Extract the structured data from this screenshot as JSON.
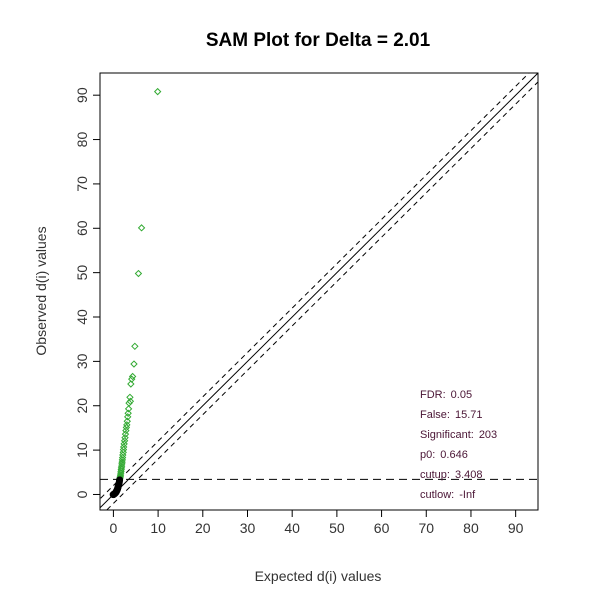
{
  "chart_data": {
    "type": "scatter",
    "title": "SAM Plot for Delta = 2.01",
    "xlabel": "Expected d(i) values",
    "ylabel": "Observed d(i) values",
    "xlim": [
      -3,
      95
    ],
    "ylim": [
      -3.5,
      95
    ],
    "xticks": [
      0,
      10,
      20,
      30,
      40,
      50,
      60,
      70,
      80,
      90
    ],
    "yticks": [
      0,
      10,
      20,
      30,
      40,
      50,
      60,
      70,
      80,
      90
    ],
    "significant_color": "#33aa33",
    "non_significant_color": "#000000",
    "identity_line": true,
    "delta": 2.01,
    "cutup": 3.408,
    "stats": [
      {
        "label": "FDR:",
        "value": "0.05"
      },
      {
        "label": "False:",
        "value": "15.71"
      },
      {
        "label": "Significant:",
        "value": "203"
      },
      {
        "label": "p0:",
        "value": "0.646"
      },
      {
        "label": "cutup:",
        "value": "3.408"
      },
      {
        "label": "cutlow:",
        "value": "-Inf"
      }
    ],
    "series": [
      {
        "status": "significant",
        "points": [
          [
            9.9,
            90.8
          ],
          [
            6.3,
            60.1
          ],
          [
            5.6,
            49.8
          ],
          [
            4.8,
            33.4
          ],
          [
            4.6,
            29.4
          ],
          [
            4.3,
            26.6
          ],
          [
            4.1,
            26.0
          ],
          [
            3.9,
            24.9
          ],
          [
            3.7,
            21.9
          ],
          [
            3.8,
            21.0
          ],
          [
            3.5,
            20.6
          ],
          [
            3.4,
            19.3
          ],
          [
            3.3,
            18.3
          ],
          [
            3.2,
            17.5
          ],
          [
            3.1,
            16.5
          ],
          [
            3.0,
            15.7
          ],
          [
            2.9,
            15.1
          ],
          [
            2.8,
            14.4
          ],
          [
            2.7,
            13.6
          ],
          [
            2.6,
            12.8
          ],
          [
            2.5,
            12.1
          ],
          [
            2.4,
            11.4
          ],
          [
            2.3,
            10.7
          ],
          [
            2.25,
            10.1
          ],
          [
            2.2,
            9.5
          ],
          [
            2.1,
            8.9
          ],
          [
            2.05,
            8.3
          ],
          [
            2.0,
            7.8
          ],
          [
            1.95,
            7.3
          ],
          [
            1.9,
            6.9
          ],
          [
            1.85,
            6.4
          ],
          [
            1.8,
            6.0
          ],
          [
            1.75,
            5.6
          ],
          [
            1.7,
            5.2
          ],
          [
            1.65,
            4.8
          ],
          [
            1.6,
            4.4
          ],
          [
            1.55,
            4.1
          ],
          [
            1.5,
            3.8
          ],
          [
            1.45,
            3.6
          ]
        ]
      },
      {
        "status": "non-significant",
        "points": [
          [
            1.4,
            3.3
          ],
          [
            1.35,
            3.0
          ],
          [
            1.3,
            2.7
          ],
          [
            1.25,
            2.5
          ],
          [
            1.2,
            2.3
          ],
          [
            1.15,
            2.1
          ],
          [
            1.1,
            1.9
          ],
          [
            1.05,
            1.7
          ],
          [
            1.0,
            1.5
          ],
          [
            0.95,
            1.3
          ],
          [
            0.9,
            1.2
          ],
          [
            0.85,
            1.05
          ],
          [
            0.8,
            0.95
          ],
          [
            0.75,
            0.85
          ],
          [
            0.7,
            0.75
          ],
          [
            0.65,
            0.65
          ],
          [
            0.6,
            0.55
          ],
          [
            0.55,
            0.48
          ],
          [
            0.5,
            0.42
          ],
          [
            0.45,
            0.36
          ],
          [
            0.4,
            0.3
          ],
          [
            0.35,
            0.25
          ],
          [
            0.3,
            0.2
          ],
          [
            0.25,
            0.16
          ],
          [
            0.2,
            0.12
          ],
          [
            0.15,
            0.08
          ],
          [
            0.1,
            0.05
          ],
          [
            0.05,
            0.02
          ],
          [
            0.0,
            0.0
          ],
          [
            -0.05,
            -0.03
          ]
        ]
      }
    ]
  }
}
